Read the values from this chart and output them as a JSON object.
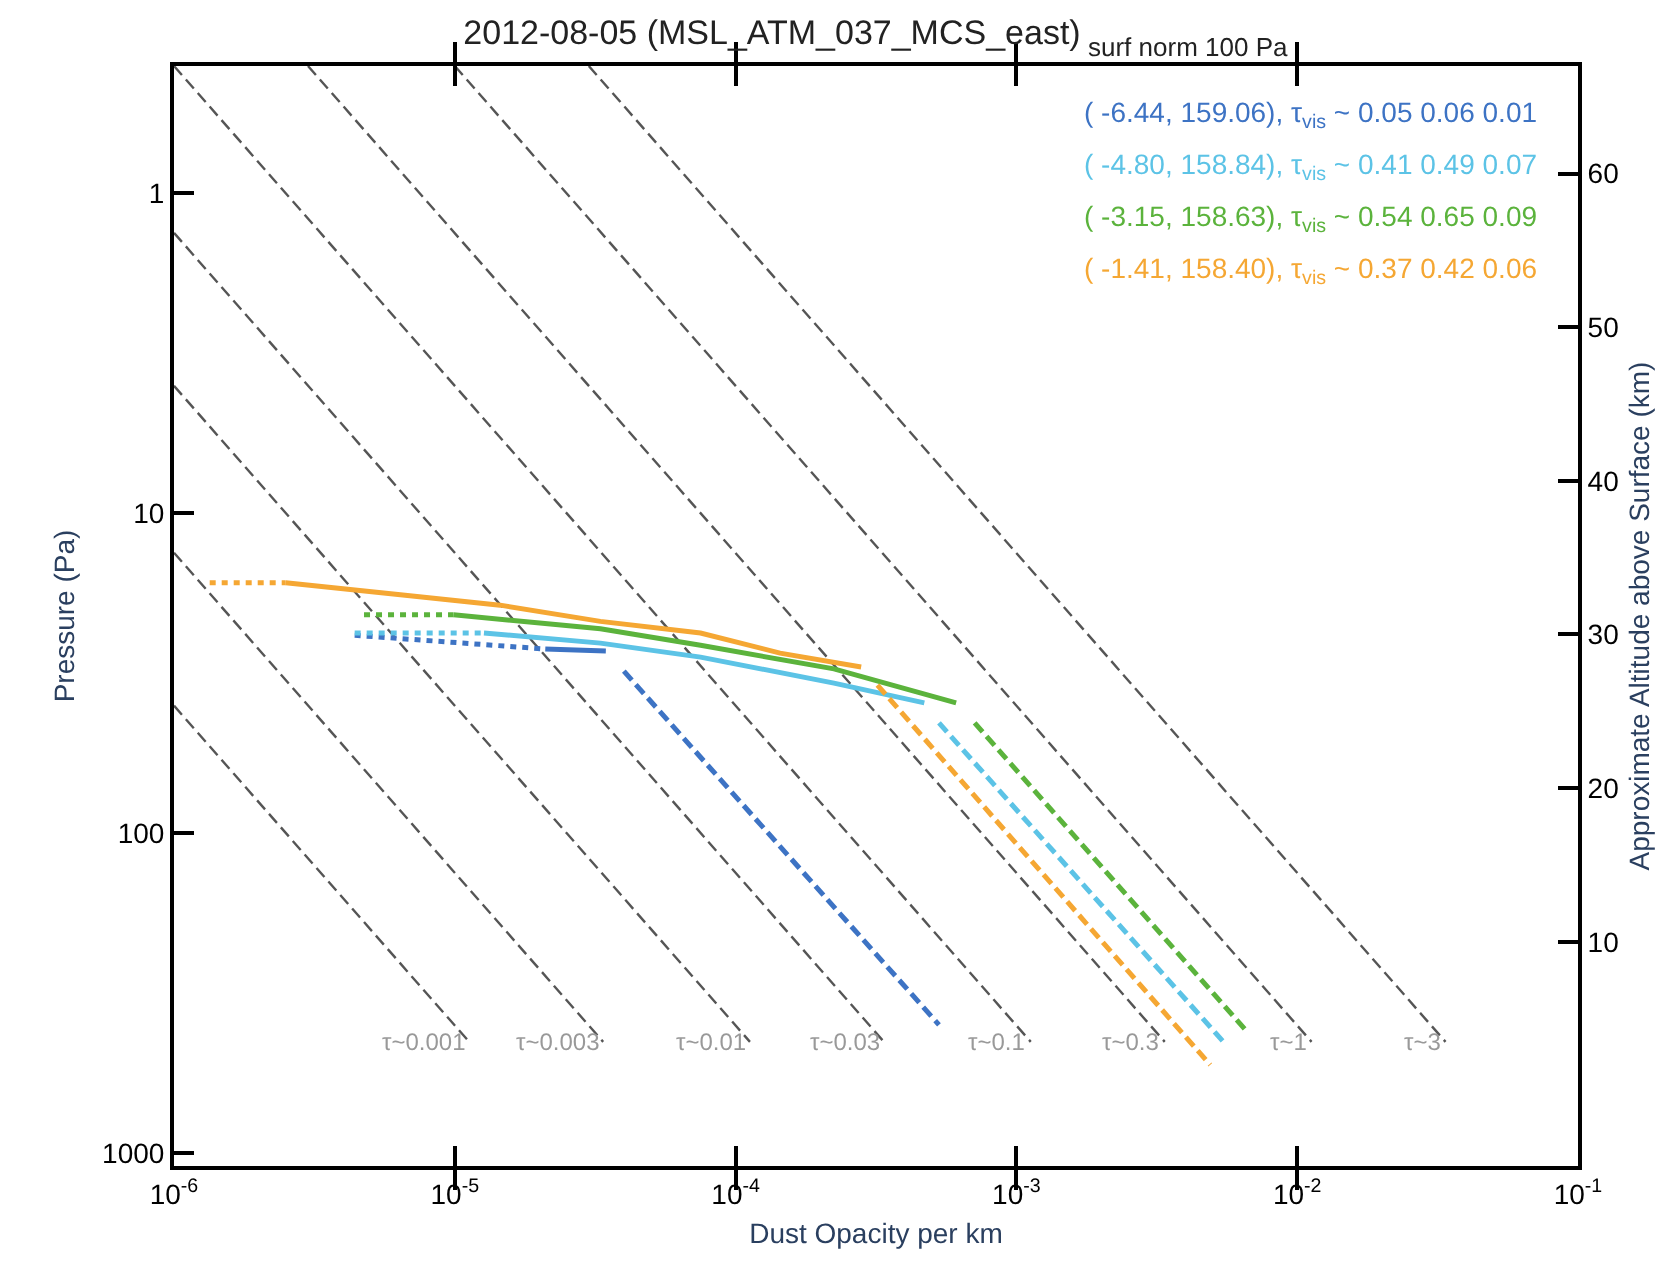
{
  "chart_data": {
    "type": "line",
    "title": "2012-08-05 (MSL_ATM_037_MCS_east)",
    "subtitle": "surf norm 100 Pa",
    "xlabel": "Dust Opacity per km",
    "ylabel": "Pressure (Pa)",
    "y2label": "Approximate Altitude above Surface (km)",
    "log": "xy",
    "xlim": [
      1e-06,
      0.1
    ],
    "xticks": [
      {
        "value": 1e-06,
        "label": "10$^{-6}$"
      },
      {
        "value": 1e-05,
        "label": "10$^{-5}$"
      },
      {
        "value": 0.0001,
        "label": "10$^{-4}$"
      },
      {
        "value": 0.001,
        "label": "10$^{-3}$"
      },
      {
        "value": 0.01,
        "label": "10$^{-2}$"
      },
      {
        "value": 0.1,
        "label": "10$^{-1}$"
      }
    ],
    "ylim": [
      1100,
      0.4
    ],
    "yticks": [
      1,
      10,
      100,
      1000
    ],
    "y2lim": [
      -4.6,
      67.0
    ],
    "y2ticks": [
      10,
      20,
      30,
      40,
      50,
      60
    ],
    "marker": "none",
    "series": [
      {
        "color": "#555555",
        "line_style": "dashed",
        "x": [
          1e-06,
          1.125e-05
        ],
        "values": [
          40,
          450
        ]
      },
      {
        "color": "#555555",
        "line_style": "dashed",
        "x": [
          1e-06,
          3.375e-05
        ],
        "values": [
          13.3,
          450
        ]
      },
      {
        "color": "#555555",
        "line_style": "dashed",
        "x": [
          1e-06,
          0.0001125
        ],
        "values": [
          4,
          450
        ]
      },
      {
        "color": "#555555",
        "line_style": "dashed",
        "x": [
          1e-06,
          0.0003375
        ],
        "values": [
          1.33,
          450
        ]
      },
      {
        "color": "#555555",
        "line_style": "dashed",
        "x": [
          1e-06,
          0.001125
        ],
        "values": [
          0.4,
          450
        ]
      },
      {
        "color": "#555555",
        "line_style": "dashed",
        "x": [
          3e-06,
          0.003375
        ],
        "values": [
          0.4,
          450
        ]
      },
      {
        "color": "#555555",
        "line_style": "dashed",
        "x": [
          1e-05,
          0.01125
        ],
        "values": [
          0.4,
          450
        ]
      },
      {
        "color": "#555555",
        "line_style": "dashed",
        "x": [
          3e-05,
          0.03375
        ],
        "values": [
          0.4,
          450
        ]
      },
      {
        "name": "( -6.44, 159.06), τ$_{vis}$ ~ 0.05 0.06 0.01",
        "color": "#3d73c4",
        "line_style": "solid",
        "x": [
          2.1e-05,
          3.45e-05
        ],
        "values": [
          26.6,
          27.0
        ]
      },
      {
        "color": "#3d73c4",
        "line_style": "dotted",
        "x": [
          4.4e-06,
          2.1e-05
        ],
        "values": [
          24.1,
          26.6
        ]
      },
      {
        "color": "#3d73c4",
        "line_style": "dashed",
        "x": [
          4e-05,
          0.00053
        ],
        "values": [
          31.2,
          398
        ]
      },
      {
        "name": "( -4.80, 158.84), τ$_{vis}$ ~ 0.41 0.49 0.07",
        "color": "#5cc3e6",
        "line_style": "solid",
        "x": [
          1.27e-05,
          3.3e-05,
          7.5e-05,
          0.000224,
          0.00047
        ],
        "values": [
          23.7,
          25.5,
          28.2,
          34.0,
          39.2
        ]
      },
      {
        "color": "#5cc3e6",
        "line_style": "dotted",
        "x": [
          4.4e-06,
          1.27e-05
        ],
        "values": [
          23.7,
          23.7
        ]
      },
      {
        "color": "#5cc3e6",
        "line_style": "dashed",
        "x": [
          0.00053,
          0.0055
        ],
        "values": [
          45.3,
          453
        ]
      },
      {
        "name": "( -3.15, 158.63), τ$_{vis}$ ~ 0.54 0.65 0.09",
        "color": "#5bb33c",
        "line_style": "solid",
        "x": [
          9.9e-06,
          3.3e-05,
          7.5e-05,
          0.000224,
          0.00061
        ],
        "values": [
          20.8,
          23.0,
          25.9,
          30.7,
          39.2
        ]
      },
      {
        "color": "#5bb33c",
        "line_style": "dotted",
        "x": [
          4.75e-06,
          9.9e-06
        ],
        "values": [
          20.8,
          20.8
        ]
      },
      {
        "color": "#5bb33c",
        "line_style": "dashed",
        "x": [
          0.00071,
          0.0065
        ],
        "values": [
          45.3,
          410
        ]
      },
      {
        "name": "( -1.41, 158.40), τ$_{vis}$ ~ 0.37 0.42 0.06",
        "color": "#f5a733",
        "line_style": "solid",
        "x": [
          2.5e-06,
          6.4e-06,
          1.45e-05,
          3.3e-05,
          7.5e-05,
          0.000144,
          0.00028
        ],
        "values": [
          16.5,
          18.0,
          19.4,
          21.8,
          23.7,
          27.4,
          30.3
        ]
      },
      {
        "color": "#f5a733",
        "line_style": "dotted",
        "x": [
          1.34e-06,
          2.5e-06
        ],
        "values": [
          16.5,
          16.5
        ]
      },
      {
        "color": "#f5a733",
        "line_style": "dashed",
        "x": [
          0.00032,
          0.0049
        ],
        "values": [
          34.5,
          531
        ]
      }
    ],
    "annotations": [
      {
        "text": "τ~0.001",
        "x": 1.125e-05,
        "y": 453
      },
      {
        "text": "τ~0.003",
        "x": 3.375e-05,
        "y": 453
      },
      {
        "text": "τ~0.01",
        "x": 0.0001125,
        "y": 453
      },
      {
        "text": "τ~0.03",
        "x": 0.0003375,
        "y": 453
      },
      {
        "text": "τ~0.1",
        "x": 0.001125,
        "y": 453
      },
      {
        "text": "τ~0.3",
        "x": 0.003375,
        "y": 453
      },
      {
        "text": "τ~1",
        "x": 0.01125,
        "y": 453
      },
      {
        "text": "τ~3",
        "x": 0.03375,
        "y": 453
      }
    ]
  }
}
